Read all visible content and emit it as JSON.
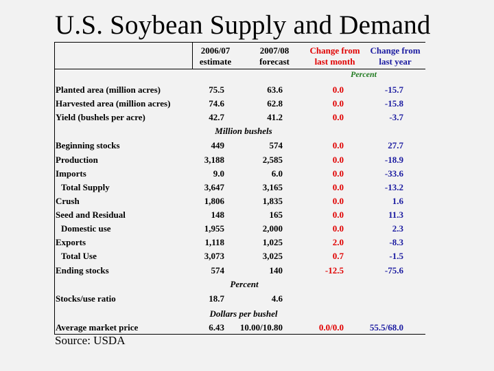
{
  "title": "U.S. Soybean Supply and Demand",
  "headers": {
    "col1": [
      "2006/07",
      "estimate"
    ],
    "col2": [
      "2007/08",
      "forecast"
    ],
    "col3": [
      "Change from",
      "last month"
    ],
    "col4": [
      "Change from",
      "last year"
    ]
  },
  "units": {
    "percent_top": "Percent",
    "million_bushels": "Million bushels",
    "percent_mid": "Percent",
    "dollars": "Dollars per bushel"
  },
  "rows": [
    {
      "label": "Planted area (million acres)",
      "v1": "75.5",
      "v2": "63.6",
      "v3": "0.0",
      "v4": "-15.7",
      "indent": false
    },
    {
      "label": "Harvested area (million acres)",
      "v1": "74.6",
      "v2": "62.8",
      "v3": "0.0",
      "v4": "-15.8",
      "indent": false
    },
    {
      "label": "Yield (bushels per acre)",
      "v1": "42.7",
      "v2": "41.2",
      "v3": "0.0",
      "v4": "-3.7",
      "indent": false
    },
    {
      "label": "Beginning stocks",
      "v1": "449",
      "v2": "574",
      "v3": "0.0",
      "v4": "27.7",
      "indent": false
    },
    {
      "label": "Production",
      "v1": "3,188",
      "v2": "2,585",
      "v3": "0.0",
      "v4": "-18.9",
      "indent": false
    },
    {
      "label": "Imports",
      "v1": "9.0",
      "v2": "6.0",
      "v3": "0.0",
      "v4": "-33.6",
      "indent": false
    },
    {
      "label": "Total Supply",
      "v1": "3,647",
      "v2": "3,165",
      "v3": "0.0",
      "v4": "-13.2",
      "indent": true
    },
    {
      "label": "Crush",
      "v1": "1,806",
      "v2": "1,835",
      "v3": "0.0",
      "v4": "1.6",
      "indent": false
    },
    {
      "label": "Seed and Residual",
      "v1": "148",
      "v2": "165",
      "v3": "0.0",
      "v4": "11.3",
      "indent": false
    },
    {
      "label": "Domestic use",
      "v1": "1,955",
      "v2": "2,000",
      "v3": "0.0",
      "v4": "2.3",
      "indent": true
    },
    {
      "label": "Exports",
      "v1": "1,118",
      "v2": "1,025",
      "v3": "2.0",
      "v4": "-8.3",
      "indent": false
    },
    {
      "label": "Total Use",
      "v1": "3,073",
      "v2": "3,025",
      "v3": "0.7",
      "v4": "-1.5",
      "indent": true
    },
    {
      "label": "Ending stocks",
      "v1": "574",
      "v2": "140",
      "v3": "-12.5",
      "v4": "-75.6",
      "indent": false
    },
    {
      "label": "Stocks/use ratio",
      "v1": "18.7",
      "v2": "4.6",
      "v3": "",
      "v4": "",
      "indent": false
    },
    {
      "label": "Average market price",
      "v1": "6.43",
      "v2": "10.00/10.80",
      "v3": "0.0/0.0",
      "v4": "55.5/68.0",
      "indent": false
    }
  ],
  "source": "Source:  USDA",
  "colors": {
    "background": "#f2f2f2",
    "change_month": "#e00000",
    "change_year": "#1a1aa0",
    "percent_label": "#1f7a1f"
  }
}
